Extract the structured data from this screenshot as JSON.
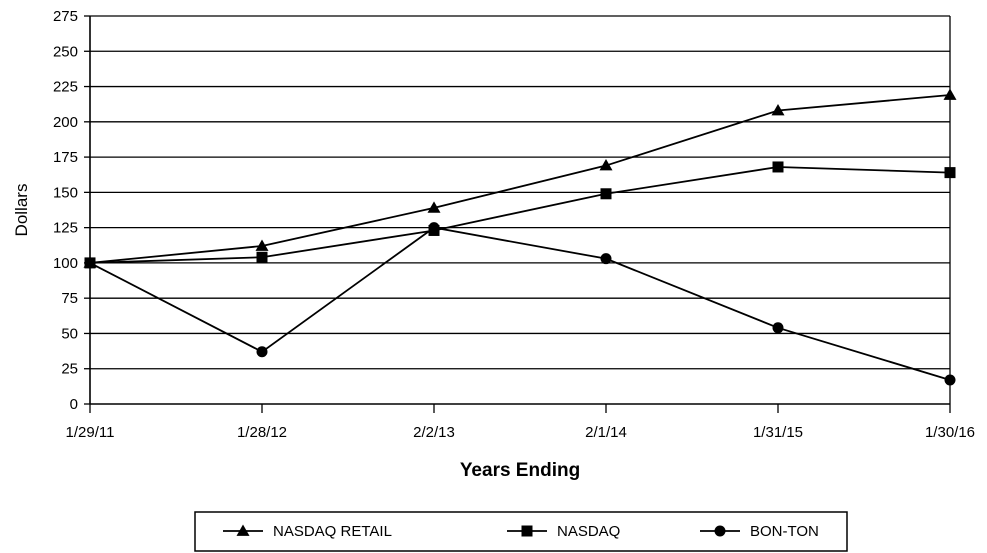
{
  "chart_data": {
    "type": "line",
    "title": "",
    "xlabel": "Years Ending",
    "ylabel": "Dollars",
    "categories": [
      "1/29/11",
      "1/28/12",
      "2/2/13",
      "2/1/14",
      "1/31/15",
      "1/30/16"
    ],
    "ylim": [
      0,
      275
    ],
    "yticks": [
      0,
      25,
      50,
      75,
      100,
      125,
      150,
      175,
      200,
      225,
      250,
      275
    ],
    "grid": "horizontal",
    "legend_position": "bottom",
    "series": [
      {
        "name": "NASDAQ RETAIL",
        "marker": "triangle",
        "values": [
          100,
          112,
          139,
          169,
          208,
          219
        ]
      },
      {
        "name": "NASDAQ",
        "marker": "square",
        "values": [
          100,
          104,
          123,
          149,
          168,
          164
        ]
      },
      {
        "name": "BON-TON",
        "marker": "circle",
        "values": [
          100,
          37,
          125,
          103,
          54,
          17
        ]
      }
    ]
  },
  "colors": {
    "line": "#000000",
    "grid": "#000000",
    "background": "#ffffff"
  }
}
